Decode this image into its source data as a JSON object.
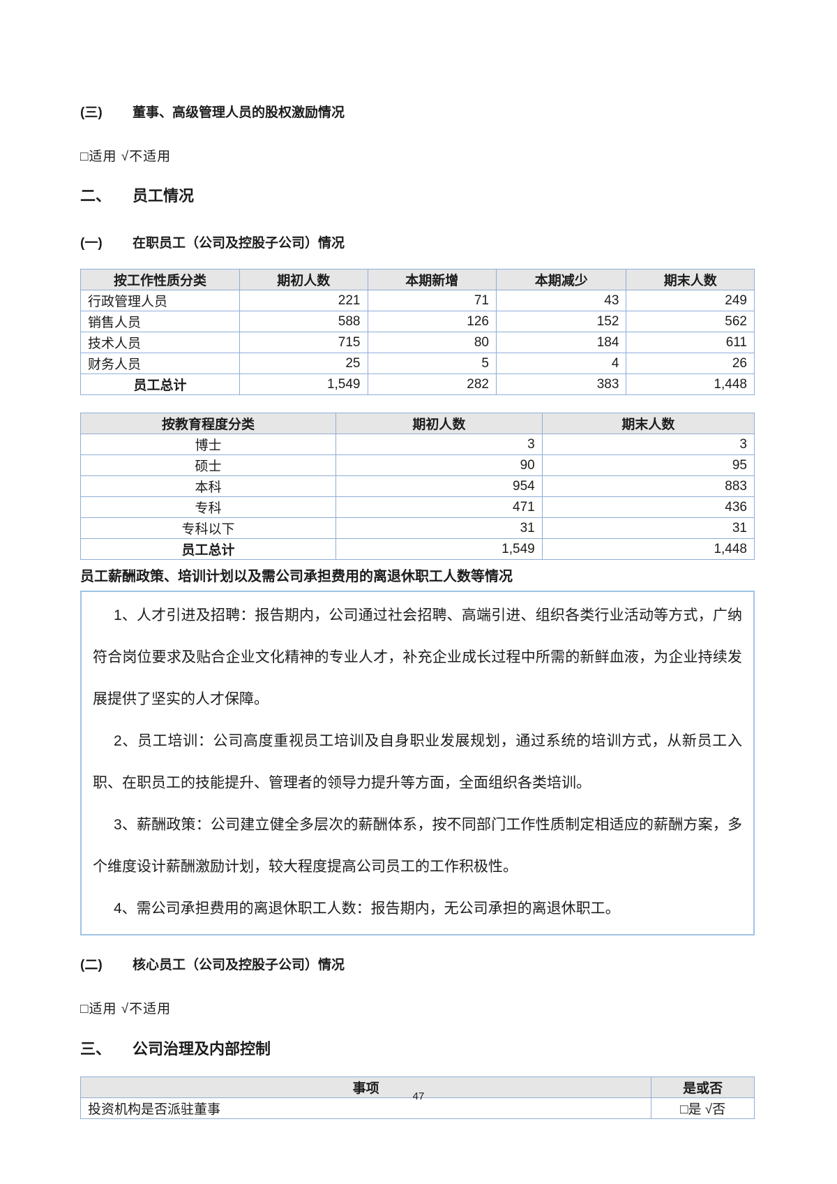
{
  "doc": {
    "sec3": {
      "num": "(三)",
      "title": "董事、高级管理人员的股权激励情况"
    },
    "applicable_line": "□适用  √不适用",
    "sec_ii": {
      "num": "二、",
      "title": "员工情况"
    },
    "sec1": {
      "num": "(一)",
      "title": "在职员工（公司及控股子公司）情况"
    },
    "salary_caption": "员工薪酬政策、培训计划以及需公司承担费用的离退休职工人数等情况",
    "notes": [
      "1、人才引进及招聘：报告期内，公司通过社会招聘、高端引进、组织各类行业活动等方式，广纳符合岗位要求及贴合企业文化精神的专业人才，补充企业成长过程中所需的新鲜血液，为企业持续发展提供了坚实的人才保障。",
      "2、员工培训：公司高度重视员工培训及自身职业发展规划，通过系统的培训方式，从新员工入职、在职员工的技能提升、管理者的领导力提升等方面，全面组织各类培训。",
      "3、薪酬政策：公司建立健全多层次的薪酬体系，按不同部门工作性质制定相适应的薪酬方案，多个维度设计薪酬激励计划，较大程度提高公司员工的工作积极性。",
      "4、需公司承担费用的离退休职工人数：报告期内，无公司承担的离退休职工。"
    ],
    "sec2": {
      "num": "(二)",
      "title": "核心员工（公司及控股子公司）情况"
    },
    "sec_iii": {
      "num": "三、",
      "title": "公司治理及内部控制"
    },
    "page_number": "47"
  },
  "colors": {
    "table_border": "#8fadd6",
    "header_bg": "#e6e6e6",
    "box_border": "#9dc3e6"
  },
  "tables": {
    "by_job": {
      "headers": [
        "按工作性质分类",
        "期初人数",
        "本期新增",
        "本期减少",
        "期末人数"
      ],
      "rows": [
        [
          "行政管理人员",
          "221",
          "71",
          "43",
          "249"
        ],
        [
          "销售人员",
          "588",
          "126",
          "152",
          "562"
        ],
        [
          "技术人员",
          "715",
          "80",
          "184",
          "611"
        ],
        [
          "财务人员",
          "25",
          "5",
          "4",
          "26"
        ],
        [
          "员工总计",
          "1,549",
          "282",
          "383",
          "1,448"
        ]
      ]
    },
    "by_education": {
      "headers": [
        "按教育程度分类",
        "期初人数",
        "期末人数"
      ],
      "rows": [
        [
          "博士",
          "3",
          "3"
        ],
        [
          "硕士",
          "90",
          "95"
        ],
        [
          "本科",
          "954",
          "883"
        ],
        [
          "专科",
          "471",
          "436"
        ],
        [
          "专科以下",
          "31",
          "31"
        ],
        [
          "员工总计",
          "1,549",
          "1,448"
        ]
      ]
    },
    "governance": {
      "headers": [
        "事项",
        "是或否"
      ],
      "rows": [
        [
          "投资机构是否派驻董事",
          "□是  √否"
        ]
      ]
    }
  }
}
